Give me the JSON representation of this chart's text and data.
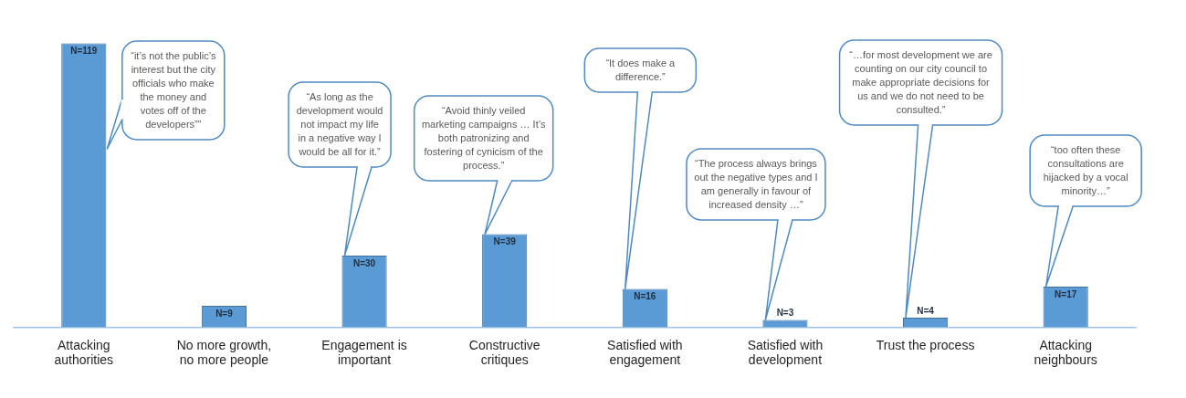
{
  "chart_data": {
    "type": "bar",
    "categories": [
      "Attacking authorities",
      "No more growth, no more people",
      "Engagement is important",
      "Constructive critiques",
      "Satisfied with engagement",
      "Satisfied with development",
      "Trust the process",
      "Attacking neighbours"
    ],
    "values": [
      119,
      9,
      30,
      39,
      16,
      3,
      4,
      17
    ],
    "value_labels": [
      "N=119",
      "N=9",
      "N=30",
      "N=39",
      "N=16",
      "N=3",
      "N=4",
      "N=17"
    ],
    "color": "#5b9bd5",
    "grid": false,
    "legend": false,
    "annotations": [
      "“it’s not the public’s interest but the city officials who make the money and votes off of the developers””",
      "“As long as the development would not impact my life in a negative way I would be all for it.”",
      "“Avoid thinly veiled marketing campaigns … It’s both patronizing and fostering of cynicism of the process.”",
      "“It does make a difference.”",
      "“The process always brings out the negative types and I am generally in favour of increased density …”",
      "“…for most development we are counting on our city council to make appropriate decisions for us and we do not need to be consulted.”",
      "“too often these consultations are hijacked by a vocal minority…”"
    ]
  }
}
